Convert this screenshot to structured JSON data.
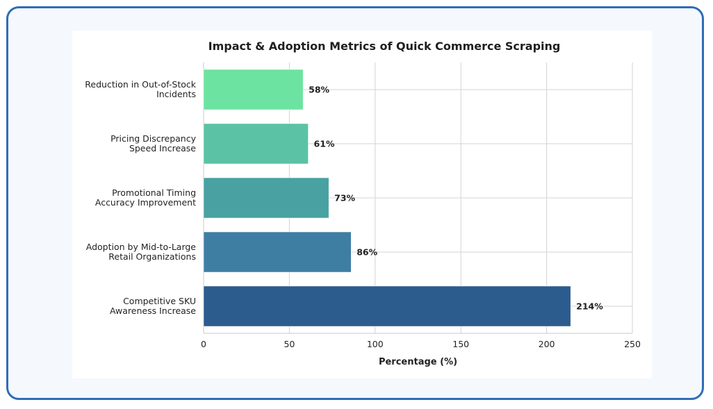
{
  "chart_data": {
    "type": "bar",
    "orientation": "horizontal",
    "title": "Impact & Adoption Metrics of Quick Commerce Scraping",
    "xlabel": "Percentage (%)",
    "ylabel": "",
    "xlim": [
      0,
      250
    ],
    "xticks": [
      "0",
      "50",
      "100",
      "150",
      "200",
      "250"
    ],
    "grid": true,
    "categories": [
      [
        "Reduction in Out-of-Stock",
        "Incidents"
      ],
      [
        "Pricing Discrepancy",
        "Speed Increase"
      ],
      [
        "Promotional Timing",
        "Accuracy Improvement"
      ],
      [
        "Adoption by Mid-to-Large",
        "Retail Organizations"
      ],
      [
        "Competitive SKU",
        "Awareness Increase"
      ]
    ],
    "values": [
      58,
      61,
      73,
      86,
      214
    ],
    "value_labels": [
      "58%",
      "61%",
      "73%",
      "86%",
      "214%"
    ],
    "colors": [
      "#6ce3a0",
      "#5bc2a6",
      "#4aa1a1",
      "#3f7ea3",
      "#2c5b8e"
    ]
  }
}
